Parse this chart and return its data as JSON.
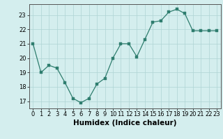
{
  "x": [
    0,
    1,
    2,
    3,
    4,
    5,
    6,
    7,
    8,
    9,
    10,
    11,
    12,
    13,
    14,
    15,
    16,
    17,
    18,
    19,
    20,
    21,
    22,
    23
  ],
  "y": [
    21.0,
    19.0,
    19.5,
    19.3,
    18.3,
    17.2,
    16.9,
    17.2,
    18.2,
    18.6,
    20.0,
    21.0,
    21.0,
    20.1,
    21.3,
    22.5,
    22.6,
    23.2,
    23.4,
    23.1,
    21.9,
    21.9,
    21.9,
    21.9
  ],
  "xlabel": "Humidex (Indice chaleur)",
  "ylim": [
    16.5,
    23.75
  ],
  "xlim": [
    -0.5,
    23.5
  ],
  "yticks": [
    17,
    18,
    19,
    20,
    21,
    22,
    23
  ],
  "xticks": [
    0,
    1,
    2,
    3,
    4,
    5,
    6,
    7,
    8,
    9,
    10,
    11,
    12,
    13,
    14,
    15,
    16,
    17,
    18,
    19,
    20,
    21,
    22,
    23
  ],
  "line_color": "#2e7d6e",
  "marker_color": "#2e7d6e",
  "bg_color": "#d4eeee",
  "grid_color": "#aed4d4",
  "tick_label_fontsize": 6,
  "xlabel_fontsize": 7.5,
  "marker_size": 2.5,
  "linewidth": 0.9
}
